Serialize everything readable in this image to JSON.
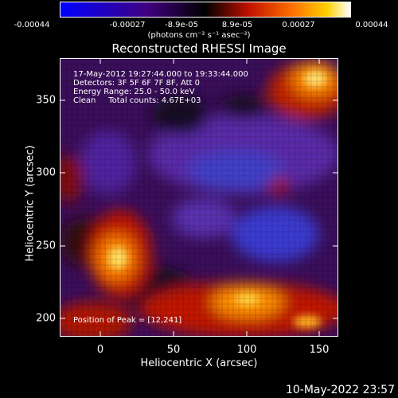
{
  "colorbar": {
    "ticks": [
      "-0.00044",
      "-0.00027",
      "-8.9e-05",
      "8.9e-05",
      "0.00027",
      "0.00044"
    ],
    "units": "(photons cm⁻² s⁻¹ asec⁻²)"
  },
  "plot": {
    "title": "Reconstructed RHESSI Image",
    "info_lines": [
      "17-May-2012 19:27:44.000 to 19:33:44.000",
      "Detectors: 3F 5F 6F 7F 8F, Att 0",
      "Energy Range: 25.0 - 50.0 keV",
      "Clean     Total counts: 4.67E+03"
    ],
    "peak_text": "Position of Peak = [12,241]",
    "xlabel": "Heliocentric X (arcsec)",
    "ylabel": "Heliocentric Y (arcsec)",
    "xticks": [
      "0",
      "50",
      "100",
      "150"
    ],
    "yticks": [
      "200",
      "250",
      "300",
      "350"
    ]
  },
  "footer_date": "10-May-2022 23:57"
}
